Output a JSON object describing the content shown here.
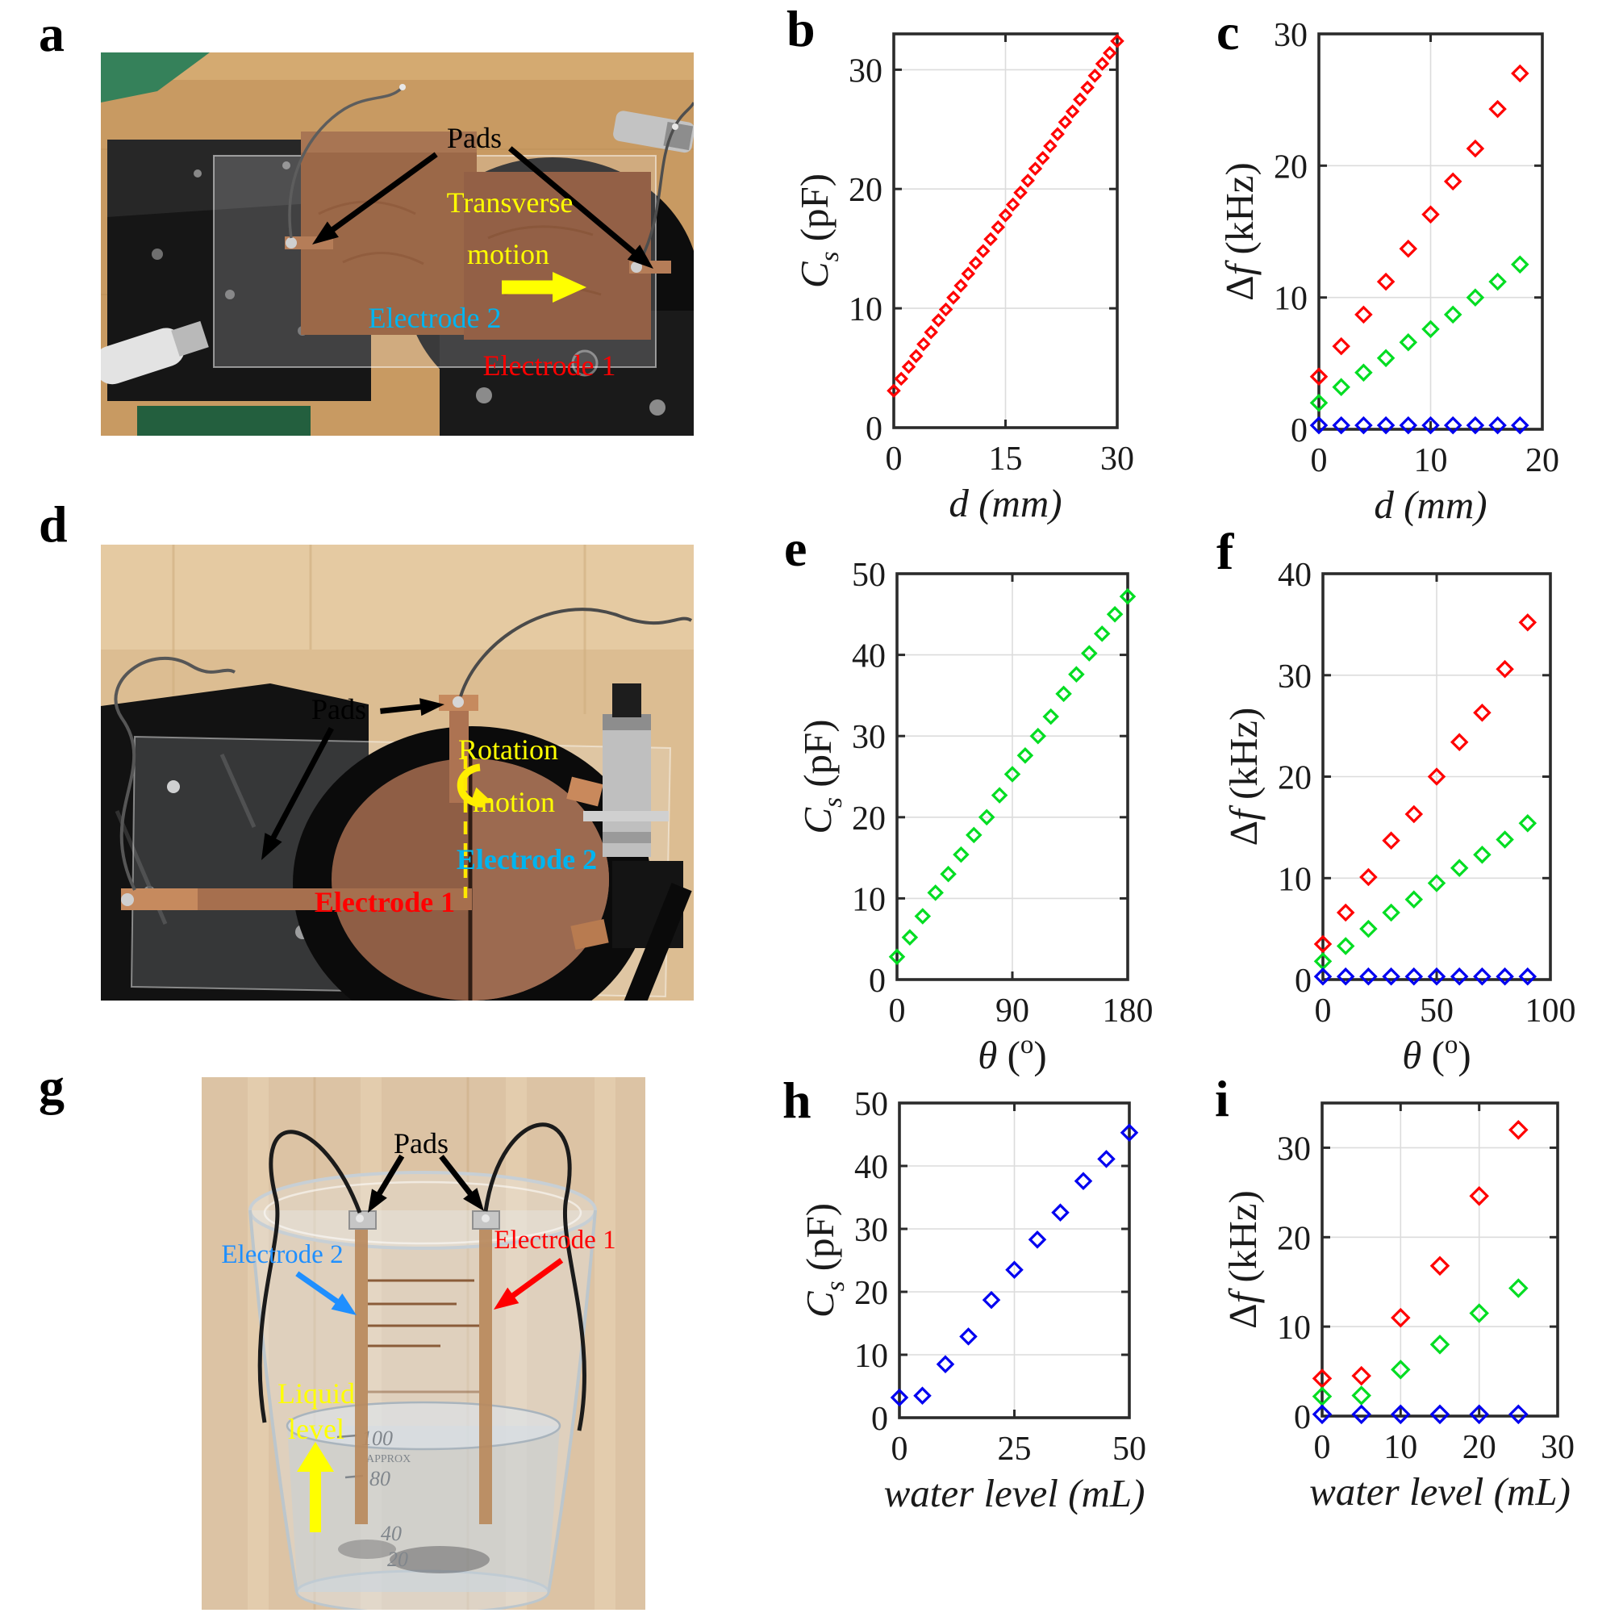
{
  "panel_labels": {
    "a": "a",
    "b": "b",
    "c": "c",
    "d": "d",
    "e": "e",
    "f": "f",
    "g": "g",
    "h": "h",
    "i": "i"
  },
  "annotation_colors": {
    "pads": "#000000",
    "electrode1": "#ff0000",
    "electrode2": "#00b4ef",
    "motion": "#ffff00"
  },
  "photos": {
    "a": {
      "pads_label": "Pads",
      "motion_label_line1": "Transverse",
      "motion_label_line2": "motion",
      "electrode2_label": "Electrode 2",
      "electrode1_label": "Electrode 1"
    },
    "d": {
      "pads_label": "Pads",
      "motion_label_line1": "Rotation",
      "motion_label_line2": "motion",
      "electrode2_label": "Electrode 2",
      "electrode1_label": "Electrode 1"
    },
    "g": {
      "pads_label": "Pads",
      "electrode2_label": "Electrode 2",
      "electrode1_label": "Electrode 1",
      "liquid_label_line1": "Liquid",
      "liquid_label_line2": "level",
      "beaker_marks": [
        "100",
        "APPROX",
        "80",
        "40",
        "20"
      ]
    }
  },
  "chart_data": [
    {
      "id": "b",
      "panel": "b",
      "type": "scatter",
      "xlabel": "d (mm)",
      "ylabel": "Cs (pF)",
      "xlabel_runs": [
        {
          "t": "d ",
          "i": true
        },
        {
          "t": "(mm)",
          "i": true
        }
      ],
      "ylabel_runs": [
        {
          "t": "C",
          "i": true
        },
        {
          "t": "s",
          "i": true,
          "sub": true
        },
        {
          "t": " (pF)"
        }
      ],
      "xlim": [
        0,
        30
      ],
      "ylim": [
        0,
        33
      ],
      "xticks": [
        0,
        15,
        30
      ],
      "yticks": [
        0,
        10,
        20,
        30
      ],
      "grid": true,
      "marker": "diamond",
      "marker_size": 6.5,
      "series": [
        {
          "name": "Cs-vs-d",
          "color": "#ff0000",
          "x": [
            0,
            1,
            2,
            3,
            4,
            5,
            6,
            7,
            8,
            9,
            10,
            11,
            12,
            13,
            14,
            15,
            16,
            17,
            18,
            19,
            20,
            21,
            22,
            23,
            24,
            25,
            26,
            27,
            28,
            29,
            30
          ],
          "y": [
            3.1,
            4.1,
            5.1,
            6.0,
            7.0,
            8.0,
            9.0,
            9.9,
            10.9,
            11.9,
            12.9,
            13.8,
            14.8,
            15.8,
            16.8,
            17.8,
            18.7,
            19.7,
            20.7,
            21.7,
            22.6,
            23.6,
            24.6,
            25.6,
            26.5,
            27.5,
            28.5,
            29.5,
            30.5,
            31.4,
            32.4
          ]
        }
      ]
    },
    {
      "id": "c",
      "panel": "c",
      "type": "scatter",
      "xlabel": "d (mm)",
      "ylabel": "Δf (kHz)",
      "xlabel_runs": [
        {
          "t": "d ",
          "i": true
        },
        {
          "t": "(mm)",
          "i": true
        }
      ],
      "ylabel_runs": [
        {
          "t": "Δ"
        },
        {
          "t": "f",
          "i": true
        },
        {
          "t": " (kHz)"
        }
      ],
      "xlim": [
        0,
        20
      ],
      "ylim": [
        0,
        30
      ],
      "xticks": [
        0,
        10,
        20
      ],
      "yticks": [
        0,
        10,
        20,
        30
      ],
      "grid": true,
      "marker": "diamond",
      "marker_size": 9,
      "series": [
        {
          "name": "deltaf-red",
          "color": "#ff0000",
          "x": [
            0,
            2,
            4,
            6,
            8,
            10,
            12,
            14,
            16,
            18
          ],
          "y": [
            4.0,
            6.3,
            8.7,
            11.2,
            13.7,
            16.3,
            18.8,
            21.3,
            24.3,
            27.0
          ]
        },
        {
          "name": "deltaf-green",
          "color": "#00dd22",
          "x": [
            0,
            2,
            4,
            6,
            8,
            10,
            12,
            14,
            16,
            18
          ],
          "y": [
            2.0,
            3.2,
            4.3,
            5.4,
            6.6,
            7.6,
            8.7,
            10.0,
            11.2,
            12.5
          ]
        },
        {
          "name": "deltaf-blue",
          "color": "#0000f0",
          "x": [
            0,
            2,
            4,
            6,
            8,
            10,
            12,
            14,
            16,
            18
          ],
          "y": [
            0.3,
            0.3,
            0.3,
            0.3,
            0.3,
            0.3,
            0.3,
            0.3,
            0.3,
            0.3
          ]
        }
      ]
    },
    {
      "id": "e",
      "panel": "e",
      "type": "scatter",
      "xlabel": "θ (°)",
      "ylabel": "Cs (pF)",
      "xlabel_runs": [
        {
          "t": "θ ",
          "i": true
        },
        {
          "t": "("
        },
        {
          "t": "o",
          "sup": true
        },
        {
          "t": ")"
        }
      ],
      "ylabel_runs": [
        {
          "t": "C",
          "i": true
        },
        {
          "t": "s",
          "i": true,
          "sub": true
        },
        {
          "t": " (pF)"
        }
      ],
      "xlim": [
        0,
        180
      ],
      "ylim": [
        0,
        50
      ],
      "xticks": [
        0,
        90,
        180
      ],
      "yticks": [
        0,
        10,
        20,
        30,
        40,
        50
      ],
      "grid": true,
      "marker": "diamond",
      "marker_size": 8,
      "series": [
        {
          "name": "Cs-vs-theta",
          "color": "#00dd22",
          "x": [
            0,
            10,
            20,
            30,
            40,
            50,
            60,
            70,
            80,
            90,
            100,
            110,
            120,
            130,
            140,
            150,
            160,
            170,
            180
          ],
          "y": [
            2.8,
            5.2,
            7.8,
            10.7,
            13.0,
            15.4,
            17.8,
            20.0,
            22.7,
            25.3,
            27.6,
            30.0,
            32.4,
            35.2,
            37.6,
            40.2,
            42.6,
            45.0,
            47.2
          ]
        }
      ]
    },
    {
      "id": "f",
      "panel": "f",
      "type": "scatter",
      "xlabel": "θ (°)",
      "ylabel": "Δf (kHz)",
      "xlabel_runs": [
        {
          "t": "θ ",
          "i": true
        },
        {
          "t": "("
        },
        {
          "t": "o",
          "sup": true
        },
        {
          "t": ")"
        }
      ],
      "ylabel_runs": [
        {
          "t": "Δ"
        },
        {
          "t": "f",
          "i": true
        },
        {
          "t": " (kHz)"
        }
      ],
      "xlim": [
        0,
        100
      ],
      "ylim": [
        0,
        40
      ],
      "xticks": [
        0,
        50,
        100
      ],
      "yticks": [
        0,
        10,
        20,
        30,
        40
      ],
      "grid": true,
      "marker": "diamond",
      "marker_size": 9,
      "series": [
        {
          "name": "deltaf-red",
          "color": "#ff0000",
          "x": [
            0,
            10,
            20,
            30,
            40,
            50,
            60,
            70,
            80,
            90
          ],
          "y": [
            3.5,
            6.6,
            10.1,
            13.7,
            16.3,
            20.0,
            23.4,
            26.3,
            30.6,
            35.2
          ]
        },
        {
          "name": "deltaf-green",
          "color": "#00dd22",
          "x": [
            0,
            10,
            20,
            30,
            40,
            50,
            60,
            70,
            80,
            90
          ],
          "y": [
            1.8,
            3.3,
            5.0,
            6.6,
            7.9,
            9.5,
            11.0,
            12.3,
            13.8,
            15.4
          ]
        },
        {
          "name": "deltaf-blue",
          "color": "#0000f0",
          "x": [
            0,
            10,
            20,
            30,
            40,
            50,
            60,
            70,
            80,
            90
          ],
          "y": [
            0.3,
            0.3,
            0.3,
            0.3,
            0.3,
            0.3,
            0.3,
            0.3,
            0.3,
            0.3
          ]
        }
      ]
    },
    {
      "id": "h",
      "panel": "h",
      "type": "scatter",
      "xlabel": "water level (mL)",
      "ylabel": "Cs (pF)",
      "xlabel_runs": [
        {
          "t": "water level (mL)",
          "i": true
        }
      ],
      "ylabel_runs": [
        {
          "t": "C",
          "i": true
        },
        {
          "t": "s",
          "i": true,
          "sub": true
        },
        {
          "t": " (pF)"
        }
      ],
      "xlim": [
        0,
        50
      ],
      "ylim": [
        0,
        50
      ],
      "xticks": [
        0,
        25,
        50
      ],
      "yticks": [
        0,
        10,
        20,
        30,
        40,
        50
      ],
      "grid": true,
      "marker": "diamond",
      "marker_size": 9,
      "series": [
        {
          "name": "Cs-vs-waterlevel",
          "color": "#0000f0",
          "x": [
            0,
            5,
            10,
            15,
            20,
            25,
            30,
            35,
            40,
            45,
            50
          ],
          "y": [
            3.2,
            3.5,
            8.5,
            12.9,
            18.7,
            23.5,
            28.3,
            32.6,
            37.6,
            41.1,
            45.3
          ]
        }
      ]
    },
    {
      "id": "i",
      "panel": "i",
      "type": "scatter",
      "xlabel": "water level (mL)",
      "ylabel": "Δf (kHz)",
      "xlabel_runs": [
        {
          "t": "water level (mL)",
          "i": true
        }
      ],
      "ylabel_runs": [
        {
          "t": "Δ"
        },
        {
          "t": "f",
          "i": true
        },
        {
          "t": " (kHz)"
        }
      ],
      "xlim": [
        0,
        30
      ],
      "ylim": [
        0,
        35
      ],
      "xticks": [
        0,
        10,
        20,
        30
      ],
      "yticks": [
        0,
        10,
        20,
        30
      ],
      "grid": true,
      "marker": "diamond",
      "marker_size": 10,
      "series": [
        {
          "name": "deltaf-red",
          "color": "#ff0000",
          "x": [
            0,
            5,
            10,
            15,
            20,
            25
          ],
          "y": [
            4.2,
            4.5,
            11.0,
            16.8,
            24.6,
            32.0
          ]
        },
        {
          "name": "deltaf-green",
          "color": "#00dd22",
          "x": [
            0,
            5,
            10,
            15,
            20,
            25
          ],
          "y": [
            2.2,
            2.3,
            5.2,
            8.0,
            11.5,
            14.3
          ]
        },
        {
          "name": "deltaf-blue",
          "color": "#0000f0",
          "x": [
            0,
            5,
            10,
            15,
            20,
            25
          ],
          "y": [
            0.2,
            0.2,
            0.2,
            0.2,
            0.2,
            0.2
          ]
        }
      ]
    }
  ]
}
